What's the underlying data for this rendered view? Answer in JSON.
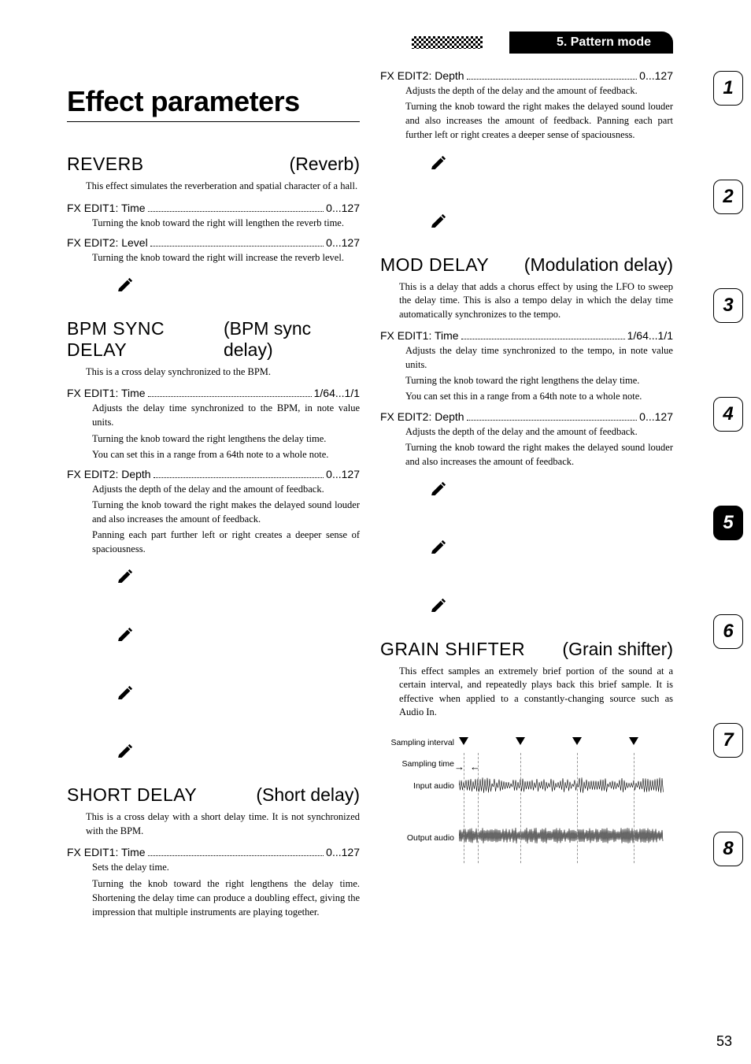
{
  "breadcrumb": "5. Pattern mode",
  "page_title": "Effect parameters",
  "page_number": "53",
  "tabs": [
    "1",
    "2",
    "3",
    "4",
    "5",
    "6",
    "7",
    "8"
  ],
  "active_tab_index": 4,
  "left_sections": [
    {
      "name": "REVERB",
      "sub": "(Reverb)",
      "intro": "This effect simulates the reverberation and spatial character of a hall.",
      "params": [
        {
          "label": "FX EDIT1: Time",
          "range": "0...127",
          "body": [
            "Turning the knob toward the right will lengthen the reverb time."
          ],
          "icons": 0
        },
        {
          "label": "FX EDIT2: Level",
          "range": "0...127",
          "body": [
            "Turning the knob toward the right will increase the reverb level."
          ],
          "icons": 1
        }
      ]
    },
    {
      "name": "BPM SYNC DELAY",
      "sub": "(BPM sync delay)",
      "intro": "This is a cross delay synchronized to the BPM.",
      "params": [
        {
          "label": "FX EDIT1: Time",
          "range": "1/64...1/1",
          "body": [
            "Adjusts the delay time synchronized to the BPM, in note value units.",
            "Turning the knob toward the right lengthens the delay time.",
            "You can set this in a range from a 64th note to a whole note."
          ],
          "icons": 0
        },
        {
          "label": "FX EDIT2: Depth",
          "range": "0...127",
          "body": [
            "Adjusts the depth of the delay and the amount of feedback.",
            "Turning the knob toward the right makes the delayed sound louder and also increases the amount of feedback.",
            "Panning each part further left or right creates a deeper sense of spaciousness."
          ],
          "icons": 4
        }
      ]
    },
    {
      "name": "SHORT DELAY",
      "sub": "(Short delay)",
      "intro": "This is a cross delay with a short delay time. It is not synchronized with the BPM.",
      "params": [
        {
          "label": "FX EDIT1: Time",
          "range": "0...127",
          "body": [
            "Sets the delay time.",
            "Turning the knob toward the right lengthens the delay time. Shortening the delay time can produce a doubling effect, giving the impression that multiple instruments are playing together."
          ],
          "icons": 0
        }
      ]
    }
  ],
  "right_sections": [
    {
      "continued": true,
      "params": [
        {
          "label": "FX EDIT2: Depth",
          "range": "0...127",
          "body": [
            "Adjusts the depth of the delay and the amount of feedback.",
            "Turning the knob toward the right makes the delayed sound louder and also increases the amount of feedback. Panning each part further left or right creates a deeper sense of spaciousness."
          ],
          "icons": 2
        }
      ]
    },
    {
      "name": "MOD DELAY",
      "sub": "(Modulation delay)",
      "intro": "This is a delay that adds a chorus effect by using the LFO to sweep the delay time. This is also a tempo delay in which the delay time automatically synchronizes to the tempo.",
      "params": [
        {
          "label": "FX EDIT1: Time",
          "range": "1/64...1/1",
          "body": [
            "Adjusts the delay time synchronized to the tempo, in note value units.",
            "Turning the knob toward the right lengthens the delay time.",
            "You can set this in a range from a 64th note to a whole note."
          ],
          "icons": 0
        },
        {
          "label": "FX EDIT2: Depth",
          "range": "0...127",
          "body": [
            "Adjusts the depth of the delay and the amount of feedback.",
            "Turning the knob toward the right makes the delayed sound louder and also increases the amount of feedback."
          ],
          "icons": 3
        }
      ]
    },
    {
      "name": "GRAIN SHIFTER",
      "sub": "(Grain shifter)",
      "intro": "This effect samples an extremely brief portion of the sound at a certain interval, and repeatedly plays back this brief sample. It is effective when applied to a constantly-changing source such as Audio In.",
      "diagram": {
        "interval_label": "Sampling interval",
        "time_label": "Sampling time",
        "input_label": "Input audio",
        "output_label": "Output audio"
      }
    }
  ]
}
